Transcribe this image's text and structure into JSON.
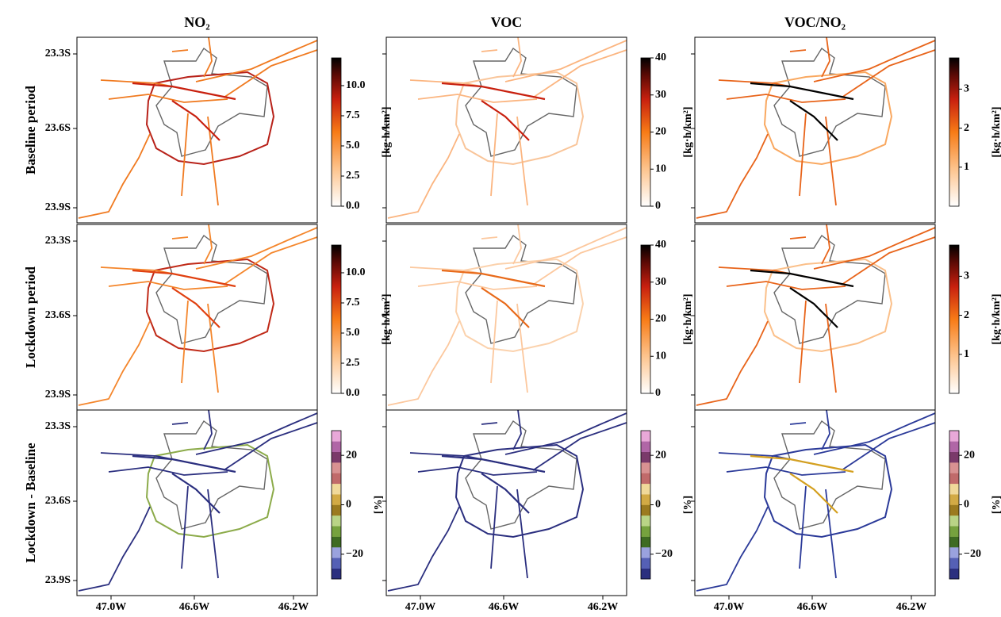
{
  "columns": [
    {
      "title": "NO₂"
    },
    {
      "title": "VOC"
    },
    {
      "title": "VOC/NO₂"
    }
  ],
  "rows": [
    {
      "label": "Baseline period"
    },
    {
      "label": "Lockdown period"
    },
    {
      "label": "Lockdown - Baseline"
    }
  ],
  "lat_ticks": [
    "23.3S",
    "23.6S",
    "23.9S"
  ],
  "lon_ticks": [
    "47.0W",
    "46.6W",
    "46.2W"
  ],
  "colorbars": [
    [
      {
        "label": "[kg·h/km²]",
        "lim": [
          0,
          12.3
        ],
        "ticks": [
          {
            "value": 0,
            "label": "0.0"
          },
          2.5,
          {
            "value": 5,
            "label": "5.0"
          },
          7.5,
          {
            "value": 10,
            "label": "10.0"
          }
        ]
      },
      {
        "label": "[kg·h/km²]",
        "lim": [
          0,
          40
        ],
        "ticks": [
          0,
          10,
          20,
          30,
          40
        ]
      },
      {
        "label": "[kg·h/km²]",
        "lim": [
          0,
          3.8
        ],
        "ticks": [
          1,
          2,
          3
        ]
      }
    ],
    [
      {
        "label": "[kg·h/km²]",
        "lim": [
          0,
          12.3
        ],
        "ticks": [
          {
            "value": 0,
            "label": "0.0"
          },
          2.5,
          {
            "value": 5,
            "label": "5.0"
          },
          7.5,
          {
            "value": 10,
            "label": "10.0"
          }
        ]
      },
      {
        "label": "[kg·h/km²]",
        "lim": [
          0,
          40
        ],
        "ticks": [
          0,
          10,
          20,
          30,
          40
        ]
      },
      {
        "label": "[kg·h/km²]",
        "lim": [
          0,
          3.8
        ],
        "ticks": [
          1,
          2,
          3
        ]
      }
    ],
    [
      {
        "label": "[%]",
        "lim": [
          -30,
          30
        ],
        "ticks": [
          {
            "value": -20,
            "label": "−20"
          },
          0,
          20
        ]
      },
      {
        "label": "[%]",
        "lim": [
          -30,
          30
        ],
        "ticks": [
          {
            "value": -20,
            "label": "−20"
          },
          0,
          20
        ]
      },
      {
        "label": "[%]",
        "lim": [
          -30,
          30
        ],
        "ticks": [
          {
            "value": -20,
            "label": "−20"
          },
          0,
          20
        ]
      }
    ]
  ]
}
